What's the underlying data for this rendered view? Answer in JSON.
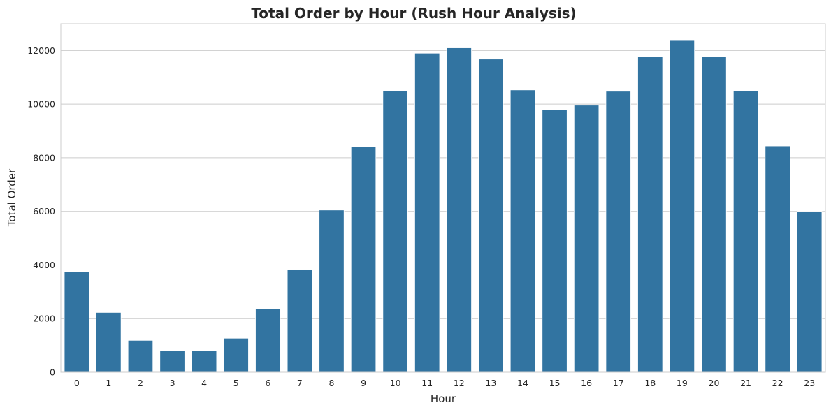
{
  "chart_data": {
    "type": "bar",
    "title": "Total Order by Hour (Rush Hour Analysis)",
    "xlabel": "Hour",
    "ylabel": "Total Order",
    "categories": [
      "0",
      "1",
      "2",
      "3",
      "4",
      "5",
      "6",
      "7",
      "8",
      "9",
      "10",
      "11",
      "12",
      "13",
      "14",
      "15",
      "16",
      "17",
      "18",
      "19",
      "20",
      "21",
      "22",
      "23"
    ],
    "values": [
      3750,
      2230,
      1190,
      810,
      810,
      1270,
      2370,
      3830,
      6050,
      8420,
      10500,
      11900,
      12100,
      11680,
      10530,
      9780,
      9960,
      10480,
      11760,
      12400,
      11760,
      10500,
      8440,
      6000
    ],
    "ylim": [
      0,
      13000
    ],
    "yticks": [
      "0",
      "2000",
      "4000",
      "6000",
      "8000",
      "10000",
      "12000"
    ],
    "bar_color": "#3274a1",
    "grid": "y",
    "legend": "none"
  }
}
